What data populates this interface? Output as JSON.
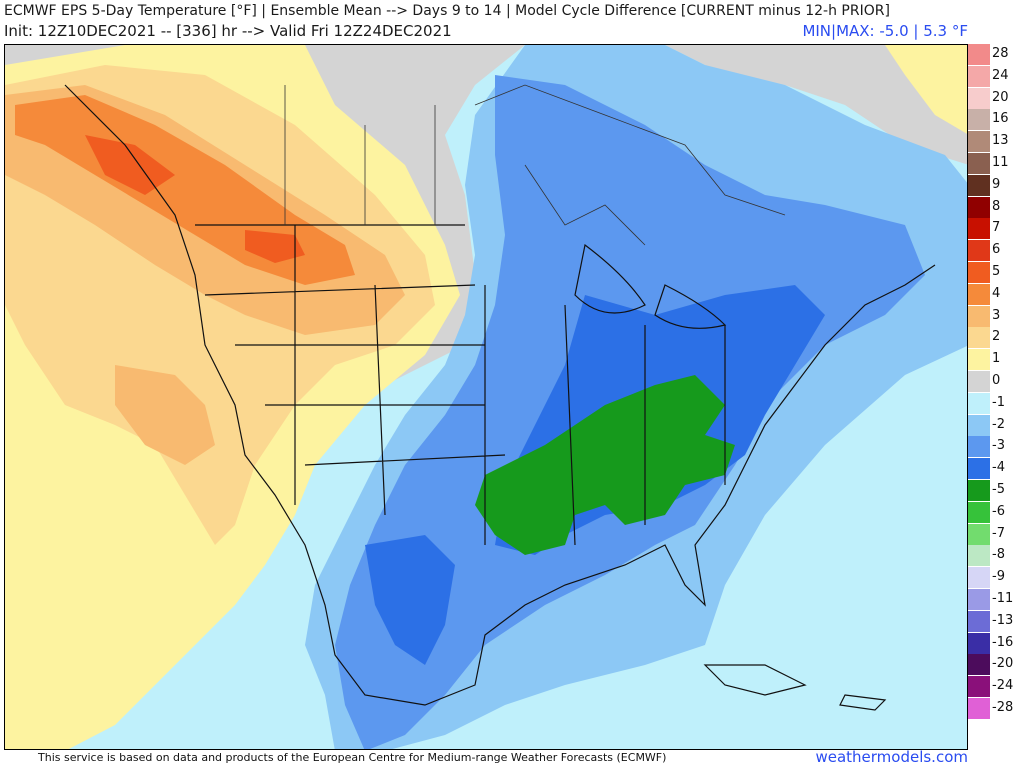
{
  "header": {
    "title": "ECMWF EPS 5-Day Temperature [°F] | Ensemble Mean --> Days 9 to 14 | Model Cycle Difference [CURRENT minus 12-h PRIOR]",
    "subtitle": "Init: 12Z10DEC2021 -- [336] hr --> Valid Fri 12Z24DEC2021",
    "minmax": "MIN|MAX: -5.0 | 5.3 °F"
  },
  "legend": {
    "labels": [
      "28",
      "24",
      "20",
      "16",
      "13",
      "11",
      "9",
      "8",
      "7",
      "6",
      "5",
      "4",
      "3",
      "2",
      "1",
      "0",
      "-1",
      "-2",
      "-3",
      "-4",
      "-5",
      "-6",
      "-7",
      "-8",
      "-9",
      "-11",
      "-13",
      "-16",
      "-20",
      "-24",
      "-28"
    ],
    "colors": [
      "#f28a8a",
      "#f4a8a8",
      "#f7cccc",
      "#c8b0a8",
      "#b08a78",
      "#8a6050",
      "#603020",
      "#900000",
      "#c81000",
      "#e03818",
      "#f05c20",
      "#f58a3a",
      "#f8ba70",
      "#fbd890",
      "#fdf3a0",
      "#d4d4d4",
      "#bff0fb",
      "#8cc8f5",
      "#5c98ef",
      "#2c70e6",
      "#169a1c",
      "#36c23a",
      "#72dc6e",
      "#bce8c4",
      "#d6d6f6",
      "#9a9ae6",
      "#6c6cd6",
      "#3a2ea6",
      "#4c0c5c",
      "#8a107a",
      "#e060d6"
    ]
  },
  "footer": {
    "attribution": "This service is based on data and products of the European Centre for Medium-range Weather Forecasts (ECMWF)",
    "site": "weathermodels.com"
  }
}
